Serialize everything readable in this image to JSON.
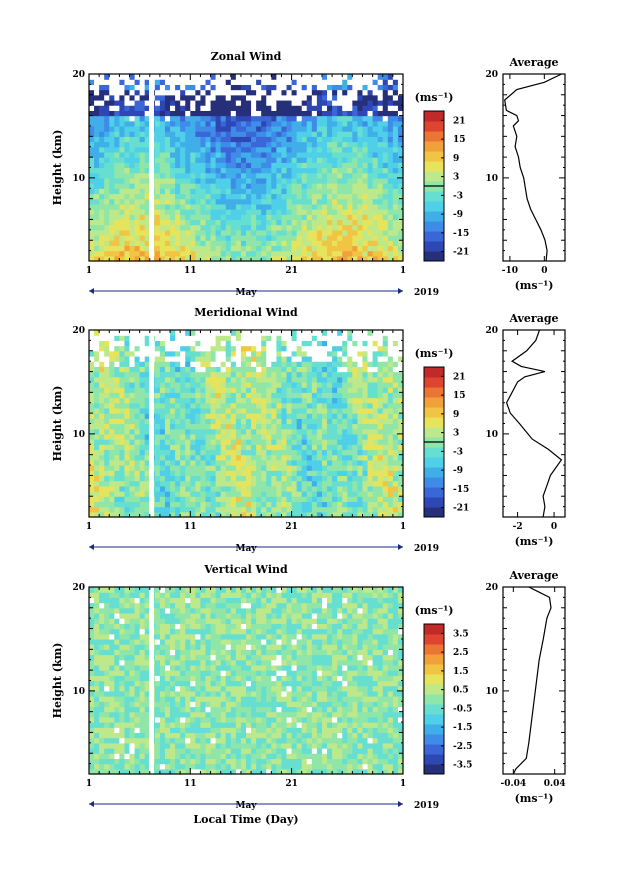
{
  "chart_data": [
    {
      "type": "heatmap",
      "title": "Zonal Wind",
      "ylabel": "Height (km)",
      "xlabel": "",
      "x_ticks": [
        "1",
        "11",
        "21",
        "1"
      ],
      "x_unit_label": "May",
      "year_label": "2019",
      "ylim": [
        2,
        20
      ],
      "y_ticks": [
        "20",
        "10"
      ],
      "colorbar": {
        "unit": "(ms⁻¹)",
        "ticks": [
          "21",
          "15",
          "9",
          "3",
          "-3",
          "-9",
          "-15",
          "-21"
        ],
        "range": [
          -24,
          24
        ]
      },
      "profile": {
        "title": "Average",
        "xlabel": "(ms⁻¹)",
        "xlim": [
          -12,
          6
        ],
        "x_ticks": [
          "-10",
          "0"
        ],
        "points": [
          [
            0.5,
            2
          ],
          [
            0.8,
            3
          ],
          [
            0.2,
            4
          ],
          [
            -1,
            5
          ],
          [
            -2.5,
            6
          ],
          [
            -4,
            7
          ],
          [
            -5,
            8
          ],
          [
            -5.5,
            9
          ],
          [
            -6,
            10
          ],
          [
            -7,
            11
          ],
          [
            -7.5,
            12
          ],
          [
            -8.5,
            13
          ],
          [
            -8,
            14
          ],
          [
            -9,
            15
          ],
          [
            -7.5,
            15.5
          ],
          [
            -8,
            16
          ],
          [
            -11,
            16.5
          ],
          [
            -11.5,
            17.5
          ],
          [
            -8,
            18.5
          ],
          [
            0,
            19.2
          ],
          [
            5,
            20
          ]
        ]
      }
    },
    {
      "type": "heatmap",
      "title": "Meridional Wind",
      "ylabel": "Height (km)",
      "xlabel": "",
      "x_ticks": [
        "1",
        "11",
        "21",
        "1"
      ],
      "x_unit_label": "May",
      "year_label": "2019",
      "ylim": [
        2,
        20
      ],
      "y_ticks": [
        "20",
        "10"
      ],
      "colorbar": {
        "unit": "(ms⁻¹)",
        "ticks": [
          "21",
          "15",
          "9",
          "3",
          "-3",
          "-9",
          "-15",
          "-21"
        ],
        "range": [
          -24,
          24
        ]
      },
      "profile": {
        "title": "Average",
        "xlabel": "(ms⁻¹)",
        "xlim": [
          -2.8,
          0.6
        ],
        "x_ticks": [
          "-2",
          "0"
        ],
        "points": [
          [
            -0.6,
            2
          ],
          [
            -0.5,
            3
          ],
          [
            -0.6,
            4
          ],
          [
            -0.4,
            5
          ],
          [
            -0.2,
            6
          ],
          [
            0.4,
            7.5
          ],
          [
            -0.3,
            8.5
          ],
          [
            -1.2,
            9.5
          ],
          [
            -1.9,
            11
          ],
          [
            -2.4,
            12
          ],
          [
            -2.6,
            13
          ],
          [
            -2.3,
            14
          ],
          [
            -2.0,
            15
          ],
          [
            -1.6,
            15.5
          ],
          [
            -0.5,
            16
          ],
          [
            -1.8,
            16.5
          ],
          [
            -2.3,
            17
          ],
          [
            -1.5,
            18
          ],
          [
            -1.0,
            19
          ],
          [
            -0.8,
            20
          ]
        ]
      }
    },
    {
      "type": "heatmap",
      "title": "Vertical Wind",
      "ylabel": "Height (km)",
      "xlabel": "Local Time (Day)",
      "x_ticks": [
        "1",
        "11",
        "21",
        "1"
      ],
      "x_unit_label": "May",
      "year_label": "2019",
      "ylim": [
        2,
        20
      ],
      "y_ticks": [
        "20",
        "10"
      ],
      "colorbar": {
        "unit": "(ms⁻¹)",
        "ticks": [
          "3.5",
          "2.5",
          "1.5",
          "0.5",
          "-0.5",
          "-1.5",
          "-2.5",
          "-3.5"
        ],
        "range": [
          -4,
          4
        ]
      },
      "profile": {
        "title": "Average",
        "xlabel": "(ms⁻¹)",
        "xlim": [
          -0.06,
          0.06
        ],
        "x_ticks": [
          "-0.04",
          "0.04"
        ],
        "points": [
          [
            -0.04,
            2
          ],
          [
            -0.035,
            2.5
          ],
          [
            -0.015,
            3.5
          ],
          [
            -0.01,
            5
          ],
          [
            -0.005,
            7
          ],
          [
            0,
            9
          ],
          [
            0.005,
            11
          ],
          [
            0.01,
            13
          ],
          [
            0.018,
            15
          ],
          [
            0.025,
            17
          ],
          [
            0.033,
            18
          ],
          [
            0.03,
            19
          ],
          [
            0.01,
            19.5
          ],
          [
            -0.01,
            20
          ]
        ]
      }
    }
  ]
}
